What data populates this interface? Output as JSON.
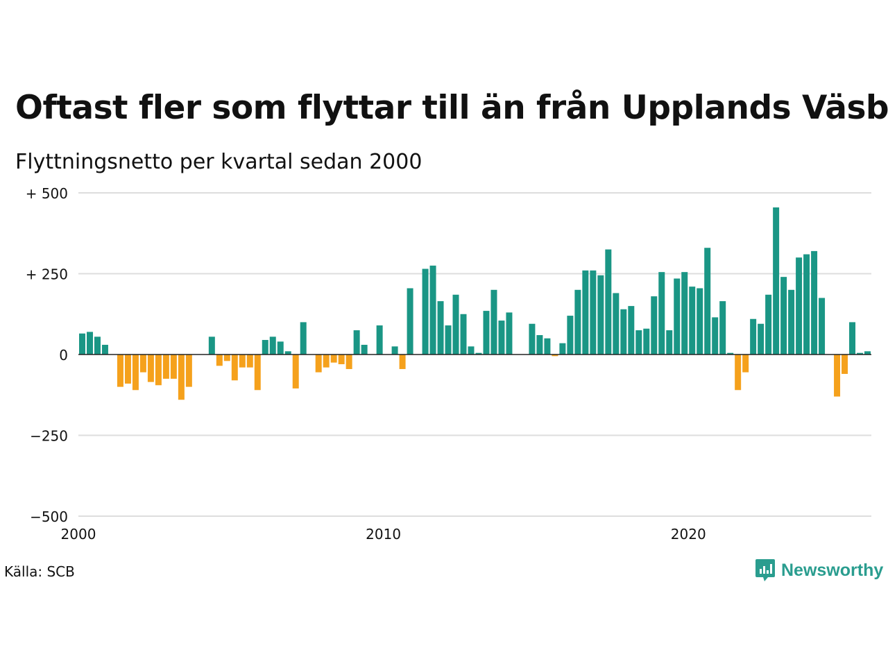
{
  "title": "Oftast fler som flyttar till än från Upplands Väsby",
  "subtitle": "Flyttningsnetto per kvartal sedan 2000",
  "source": "Källa: SCB",
  "brand": {
    "name": "Newsworthy",
    "color": "#2a9d8f",
    "icon": "newsworthy-logo-icon"
  },
  "colors": {
    "positive": "#1a9685",
    "negative": "#f5a11c",
    "grid": "#dddddd",
    "zero": "#222222"
  },
  "chart_data": {
    "type": "bar",
    "title": "Oftast fler som flyttar till än från Upplands Väsby",
    "subtitle": "Flyttningsnetto per kvartal sedan 2000",
    "ylim": [
      -500,
      500
    ],
    "y_ticks": [
      500,
      250,
      0,
      -250,
      -500
    ],
    "y_tick_labels": [
      "+ 500",
      "+ 250",
      "0",
      "−250",
      "−500"
    ],
    "x_tick_labels": [
      "2000",
      "2010",
      "2020"
    ],
    "x_tick_positions": [
      2000,
      2010,
      2020
    ],
    "grid": true,
    "start_year": 2000,
    "values": [
      65,
      70,
      55,
      30,
      0,
      -100,
      -90,
      -110,
      -55,
      -85,
      -95,
      -75,
      -75,
      -140,
      -100,
      0,
      0,
      55,
      -35,
      -20,
      -80,
      -40,
      -40,
      -110,
      45,
      55,
      40,
      10,
      -105,
      100,
      0,
      -55,
      -40,
      -25,
      -30,
      -45,
      75,
      30,
      0,
      90,
      0,
      25,
      -45,
      205,
      0,
      265,
      275,
      165,
      90,
      185,
      125,
      25,
      5,
      135,
      200,
      105,
      130,
      0,
      0,
      95,
      60,
      50,
      -5,
      35,
      120,
      200,
      260,
      260,
      245,
      325,
      190,
      140,
      150,
      75,
      80,
      180,
      255,
      75,
      235,
      255,
      210,
      205,
      330,
      115,
      165,
      5,
      -110,
      -55,
      110,
      95,
      185,
      455,
      240,
      200,
      300,
      310,
      320,
      175,
      0,
      -130,
      -60,
      100,
      5,
      10
    ]
  }
}
